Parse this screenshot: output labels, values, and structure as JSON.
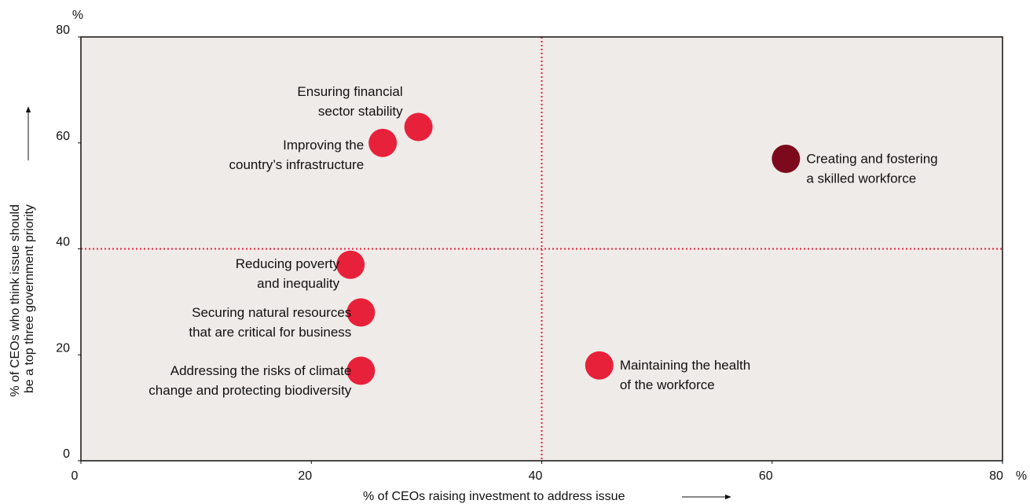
{
  "chart_data": {
    "type": "scatter",
    "x": [
      29.3,
      26.2,
      61.2,
      23.4,
      24.3,
      24.3,
      45.0
    ],
    "y": [
      63,
      60,
      57,
      37,
      28,
      17,
      18
    ],
    "colors": [
      "#e8213b",
      "#e8213b",
      "#7d0a1c",
      "#e8213b",
      "#e8213b",
      "#e8213b",
      "#e8213b"
    ],
    "labels": [
      [
        "Ensuring financial",
        "sector stability"
      ],
      [
        "Improving the",
        "country’s infrastructure"
      ],
      [
        "Creating and fostering",
        "a skilled workforce"
      ],
      [
        "Reducing poverty",
        "and inequality"
      ],
      [
        "Securing natural resources",
        "that are critical for business"
      ],
      [
        "Addressing the risks of climate",
        "change and protecting biodiversity"
      ],
      [
        "Maintaining the health",
        "of the workforce"
      ]
    ],
    "xlim": [
      0,
      80
    ],
    "ylim": [
      0,
      80
    ],
    "xticks": [
      0,
      20,
      40,
      60,
      80
    ],
    "yticks": [
      0,
      20,
      40,
      60,
      80
    ],
    "x_unit": "%",
    "y_unit": "%",
    "xline": 40,
    "yline": 40,
    "xlabel": "% of CEOs raising investment to address issue",
    "ylabel": [
      "% of CEOs who think issue should",
      "be a top three government priority"
    ],
    "background": "#efebe8",
    "line_color": "#e8213b"
  }
}
